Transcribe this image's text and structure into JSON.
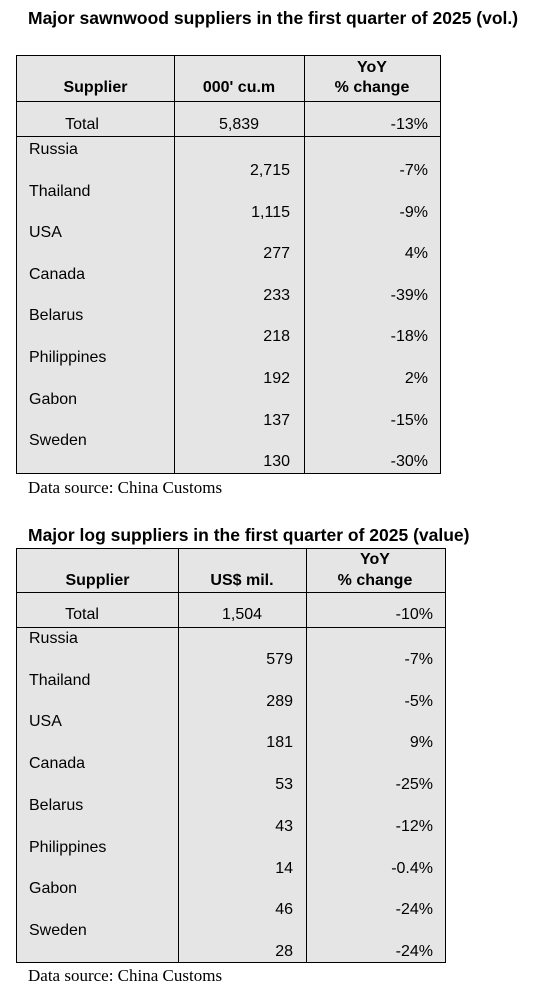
{
  "tables": [
    {
      "title": "Major sawnwood suppliers in the first quarter of 2025 (vol.)",
      "headers": {
        "supplier": "Supplier",
        "value": "000' cu.m",
        "yoy_line1": "YoY",
        "yoy_line2": "% change"
      },
      "total": {
        "label": "Total",
        "value": "5,839",
        "yoy": "-13%"
      },
      "rows": [
        {
          "supplier": "Russia",
          "value": "2,715",
          "yoy": "-7%"
        },
        {
          "supplier": "Thailand",
          "value": "1,115",
          "yoy": "-9%"
        },
        {
          "supplier": "USA",
          "value": "277",
          "yoy": "4%"
        },
        {
          "supplier": "Canada",
          "value": "233",
          "yoy": "-39%"
        },
        {
          "supplier": "Belarus",
          "value": "218",
          "yoy": "-18%"
        },
        {
          "supplier": "Philippines",
          "value": "192",
          "yoy": "2%"
        },
        {
          "supplier": "Gabon",
          "value": "137",
          "yoy": "-15%"
        },
        {
          "supplier": "Sweden",
          "value": "130",
          "yoy": "-30%"
        }
      ],
      "source": "Data source: China Customs"
    },
    {
      "title": "Major log suppliers in the first quarter of 2025 (value)",
      "headers": {
        "supplier": "Supplier",
        "value": "US$ mil.",
        "yoy_line1": "YoY",
        "yoy_line2": "% change"
      },
      "total": {
        "label": "Total",
        "value": "1,504",
        "yoy": "-10%"
      },
      "rows": [
        {
          "supplier": "Russia",
          "value": "579",
          "yoy": "-7%"
        },
        {
          "supplier": "Thailand",
          "value": "289",
          "yoy": "-5%"
        },
        {
          "supplier": "USA",
          "value": "181",
          "yoy": "9%"
        },
        {
          "supplier": "Canada",
          "value": "53",
          "yoy": "-25%"
        },
        {
          "supplier": "Belarus",
          "value": "43",
          "yoy": "-12%"
        },
        {
          "supplier": "Philippines",
          "value": "14",
          "yoy": "-0.4%"
        },
        {
          "supplier": "Gabon",
          "value": "46",
          "yoy": "-24%"
        },
        {
          "supplier": "Sweden",
          "value": "28",
          "yoy": "-24%"
        }
      ],
      "source": "Data source: China Customs"
    }
  ]
}
